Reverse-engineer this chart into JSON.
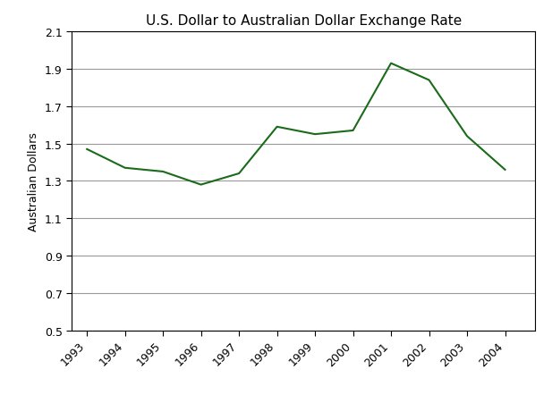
{
  "title": "U.S. Dollar to Australian Dollar Exchange Rate",
  "xlabel": "",
  "ylabel": "Australian Dollars",
  "years": [
    1993,
    1994,
    1995,
    1996,
    1997,
    1998,
    1999,
    2000,
    2001,
    2002,
    2003,
    2004
  ],
  "values": [
    1.47,
    1.37,
    1.35,
    1.28,
    1.34,
    1.59,
    1.55,
    1.57,
    1.93,
    1.84,
    1.54,
    1.36
  ],
  "line_color": "#1a6b1a",
  "line_width": 1.5,
  "ylim": [
    0.5,
    2.1
  ],
  "yticks": [
    0.5,
    0.7,
    0.9,
    1.1,
    1.3,
    1.5,
    1.7,
    1.9,
    2.1
  ],
  "xtick_labels": [
    "1993",
    "1994",
    "1995",
    "1996",
    "1997",
    "1998",
    "1999",
    "2000",
    "2001",
    "2002",
    "2003",
    "2004"
  ],
  "background_color": "#ffffff",
  "grid_color": "#999999",
  "title_fontsize": 11,
  "label_fontsize": 9,
  "tick_fontsize": 9
}
